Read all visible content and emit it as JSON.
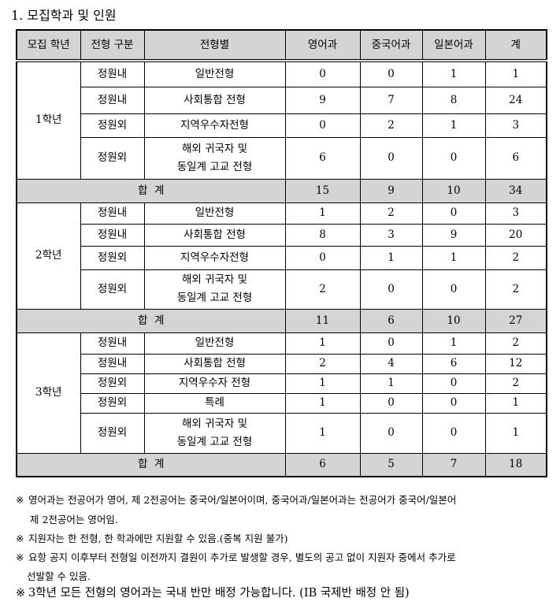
{
  "title": "1. 모집학과 및 인원",
  "headers": [
    "모집 학년",
    "전형 구분",
    "전형별",
    "영어과",
    "중국어과",
    "일본어과",
    "계"
  ],
  "grades": [
    {
      "grade": "1학년",
      "rows": [
        {
          "type": "정원내",
          "name": "일반전형",
          "vals": [
            "0",
            "0",
            "1",
            "1"
          ]
        },
        {
          "type": "정원내",
          "name": "사회통합 전형",
          "vals": [
            "9",
            "7",
            "8",
            "24"
          ]
        },
        {
          "type": "정원외",
          "name": "지역우수자전형",
          "vals": [
            "0",
            "2",
            "1",
            "3"
          ]
        },
        {
          "type": "정원외",
          "name": "해외 귀국자 및\n동일계 고교 전형",
          "vals": [
            "6",
            "0",
            "0",
            "6"
          ]
        }
      ],
      "total_label": "합  계",
      "total": [
        "15",
        "9",
        "10",
        "34"
      ]
    },
    {
      "grade": "2학년",
      "rows": [
        {
          "type": "정원내",
          "name": "일반전형",
          "vals": [
            "1",
            "2",
            "0",
            "3"
          ]
        },
        {
          "type": "정원내",
          "name": "사회통합 전형",
          "vals": [
            "8",
            "3",
            "9",
            "20"
          ]
        },
        {
          "type": "정원외",
          "name": "지역우수자전형",
          "vals": [
            "0",
            "1",
            "1",
            "2"
          ]
        },
        {
          "type": "정원외",
          "name": "해외 귀국자 및\n동일계 고교 전형",
          "vals": [
            "2",
            "0",
            "0",
            "2"
          ]
        }
      ],
      "total_label": "합  계",
      "total": [
        "11",
        "6",
        "10",
        "27"
      ]
    },
    {
      "grade": "3학년",
      "rows": [
        {
          "type": "정원내",
          "name": "일반전형",
          "vals": [
            "1",
            "0",
            "1",
            "2"
          ]
        },
        {
          "type": "정원내",
          "name": "사회통합 전형",
          "vals": [
            "2",
            "4",
            "6",
            "12"
          ]
        },
        {
          "type": "정원외",
          "name": "지역우수자 전형",
          "vals": [
            "1",
            "1",
            "0",
            "2"
          ]
        },
        {
          "type": "정원외",
          "name": "특례",
          "vals": [
            "1",
            "0",
            "0",
            "1"
          ]
        },
        {
          "type": "정원외",
          "name": "해외 귀국자 및\n동일계 고교 전형",
          "vals": [
            "1",
            "0",
            "0",
            "1"
          ]
        }
      ],
      "total_label": "합  계",
      "total": [
        "6",
        "5",
        "7",
        "18"
      ]
    }
  ],
  "notes": [
    {
      "mark": "※",
      "line1": "영어과는 전공어가 영어, 제 2전공어는 중국어/일본어이며, 중국어과/일본어과는 전공어가 중국어/일본어",
      "line2": "제 2전공어는 영어임."
    },
    {
      "mark": "※",
      "line1": "지원자는 한 전형, 한 학과에만 지원할 수 있음.(중복 지원 불가)"
    },
    {
      "mark": "※",
      "line1": "요항 공지 이후부터 전형일 이전까지 결원이 추가로 발생할 경우, 별도의 공고 없이 지원자 중에서 추가로",
      "line2": "선발할 수 있음."
    },
    {
      "mark": "※",
      "line1": "3학년 모든 전형의 영어과는 국내 반만 배정 가능합니다. (IB 국제반 배정 안 됨)"
    }
  ]
}
